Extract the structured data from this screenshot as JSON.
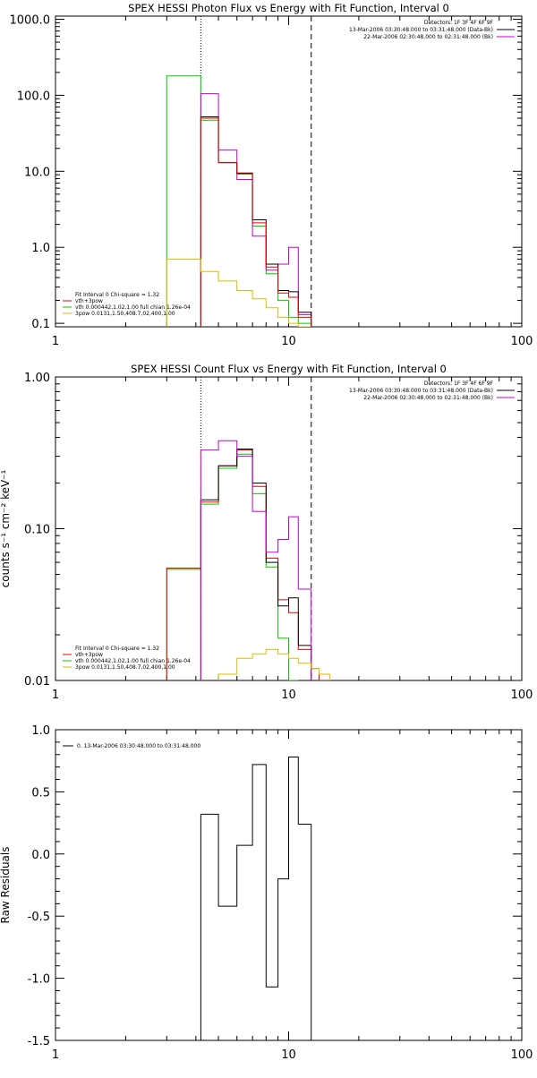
{
  "chart_data": [
    {
      "type": "line",
      "title": "SPEX HESSI Photon Flux vs Energy with Fit Function, Interval 0",
      "xlabel": "",
      "ylabel": "",
      "xscale": "log",
      "yscale": "log",
      "xlim": [
        1,
        100
      ],
      "ylim": [
        0.09,
        1100
      ],
      "x_ticks": [
        "1",
        "10",
        "100"
      ],
      "y_ticks": [
        "0.1",
        "1.0",
        "10.0",
        "100.0",
        "1000.0"
      ],
      "y_tick_values": [
        0.1,
        1,
        10,
        100,
        1000
      ],
      "vlines": [
        {
          "x": 4.2,
          "style": "dotted"
        },
        {
          "x": 12.5,
          "style": "dashed"
        }
      ],
      "legend_right": [
        {
          "text": "Detectors: 1F 3F 4F 6F 9F",
          "color": null
        },
        {
          "text": "13-Mar-2006 03:30:48.000 to 03:31:48.000 (Data-Bk)",
          "color": "#000000"
        },
        {
          "text": "22-Mar-2006 02:30:48.000 to 02:31:48.000 (Bk)",
          "color": "#cc00cc"
        }
      ],
      "legend_left": [
        {
          "text": "Fit Interval 0   Chi-square = 1.32",
          "color": null
        },
        {
          "text": "vth+3pow",
          "color": "#ee0000"
        },
        {
          "text": "vth 0.000442,1.02,1.00   full chian 1.26e-04",
          "color": "#00cc00"
        },
        {
          "text": "3pow 0.0131,1.50,408.7,02,400,1.00",
          "color": "#ddbb00"
        }
      ],
      "series": [
        {
          "color": "#00cc00",
          "edges": [
            3,
            4.2,
            5,
            6,
            7,
            8,
            9,
            10,
            11,
            12.5
          ],
          "values": [
            180,
            47,
            13,
            9.2,
            1.9,
            0.45,
            0.2,
            0.12,
            0.1
          ]
        },
        {
          "color": "#cc00cc",
          "edges": [
            4.2,
            5,
            6,
            7,
            8,
            9,
            10,
            11,
            12.5
          ],
          "values": [
            105,
            19,
            7.8,
            1.4,
            0.5,
            0.6,
            1.0,
            0.13
          ]
        },
        {
          "color": "#000000",
          "edges": [
            4.2,
            5,
            6,
            7,
            8,
            9,
            10,
            11,
            12.5
          ],
          "values": [
            52,
            13,
            9.5,
            2.3,
            0.6,
            0.27,
            0.26,
            0.14
          ]
        },
        {
          "color": "#ee0000",
          "edges": [
            4.2,
            5,
            6,
            7,
            8,
            9,
            10,
            11,
            12.5
          ],
          "values": [
            50,
            13,
            9.3,
            2.1,
            0.55,
            0.25,
            0.22,
            0.12
          ]
        },
        {
          "color": "#ddbb00",
          "edges": [
            3,
            4.2,
            5,
            6,
            7,
            8,
            9,
            10,
            11,
            12.5
          ],
          "values": [
            0.7,
            0.48,
            0.36,
            0.27,
            0.21,
            0.16,
            0.12,
            0.1,
            0.09
          ]
        }
      ]
    },
    {
      "type": "line",
      "title": "SPEX HESSI Count Flux vs Energy with Fit Function, Interval 0",
      "xlabel": "",
      "ylabel": "counts s⁻¹ cm⁻² keV⁻¹",
      "xscale": "log",
      "yscale": "log",
      "xlim": [
        1,
        100
      ],
      "ylim": [
        0.01,
        1.0
      ],
      "x_ticks": [
        "1",
        "10",
        "100"
      ],
      "y_ticks": [
        "0.01",
        "0.10",
        "1.00"
      ],
      "y_tick_values": [
        0.01,
        0.1,
        1.0
      ],
      "vlines": [
        {
          "x": 4.2,
          "style": "dotted"
        },
        {
          "x": 12.5,
          "style": "dashed"
        }
      ],
      "legend_right": [
        {
          "text": "Detectors: 1F 3F 4F 6F 9F",
          "color": null
        },
        {
          "text": "13-Mar-2006 03:30:48.000 to 03:31:48.000 (Data-Bk)",
          "color": "#000000"
        },
        {
          "text": "22-Mar-2006 02:30:48.000 to 02:31:48.000 (Bk)",
          "color": "#cc00cc"
        }
      ],
      "legend_left": [
        {
          "text": "Fit Interval 0   Chi-square = 1.32",
          "color": null
        },
        {
          "text": "vth+3pow",
          "color": "#ee0000"
        },
        {
          "text": "vth 0.000442,1.02,1.00   full chian 1.26e-04",
          "color": "#00cc00"
        },
        {
          "text": "3pow 0.0131,1.50,408.7,02,400,1.00",
          "color": "#ddbb00"
        }
      ],
      "series": [
        {
          "color": "#00cc00",
          "edges": [
            3,
            4.2,
            5,
            6,
            7,
            8,
            9,
            10,
            11
          ],
          "values": [
            0.054,
            0.145,
            0.25,
            0.31,
            0.17,
            0.056,
            0.019,
            0.01
          ]
        },
        {
          "color": "#ee0000",
          "edges": [
            3,
            4.2,
            5,
            6,
            7,
            8,
            9,
            10,
            11,
            12.5,
            13.5,
            15
          ],
          "values": [
            0.055,
            0.15,
            0.26,
            0.33,
            0.19,
            0.064,
            0.034,
            0.028,
            0.016,
            0.012,
            0.01
          ]
        },
        {
          "color": "#000000",
          "edges": [
            4.2,
            5,
            6,
            7,
            8,
            9,
            10,
            11,
            12.5
          ],
          "values": [
            0.155,
            0.26,
            0.335,
            0.2,
            0.06,
            0.031,
            0.035,
            0.017
          ]
        },
        {
          "color": "#cc00cc",
          "edges": [
            4.2,
            5,
            6,
            7,
            8,
            9,
            10,
            11,
            12.5
          ],
          "values": [
            0.33,
            0.38,
            0.3,
            0.13,
            0.07,
            0.085,
            0.12,
            0.04
          ]
        },
        {
          "color": "#ddbb00",
          "edges": [
            5,
            6,
            7,
            8,
            9,
            10,
            11,
            12.5,
            13.5,
            15
          ],
          "values": [
            0.011,
            0.014,
            0.015,
            0.016,
            0.015,
            0.014,
            0.013,
            0.012,
            0.011
          ]
        }
      ]
    },
    {
      "type": "line",
      "title": "",
      "xlabel": "",
      "ylabel": "Raw Residuals",
      "xscale": "log",
      "yscale": "linear",
      "xlim": [
        1,
        100
      ],
      "ylim": [
        -1.5,
        1.0
      ],
      "x_ticks": [
        "1",
        "10",
        "100"
      ],
      "y_ticks": [
        "-1.5",
        "-1.0",
        "-0.5",
        "0.0",
        "0.5",
        "1.0"
      ],
      "y_tick_values": [
        -1.5,
        -1.0,
        -0.5,
        0.0,
        0.5,
        1.0
      ],
      "vlines": [],
      "legend_right": [],
      "legend_left_top": [
        {
          "text": "0. 13-Mar-2006 03:30:48.000 to 03:31:48.000",
          "color": "#000000"
        }
      ],
      "series": [
        {
          "color": "#000000",
          "edges": [
            4.2,
            5,
            6,
            7,
            8,
            9,
            10,
            11,
            12.5
          ],
          "values": [
            0.32,
            -0.42,
            0.07,
            0.72,
            -1.07,
            -0.2,
            0.78,
            0.24
          ],
          "drop_to_bottom": true
        }
      ]
    }
  ]
}
